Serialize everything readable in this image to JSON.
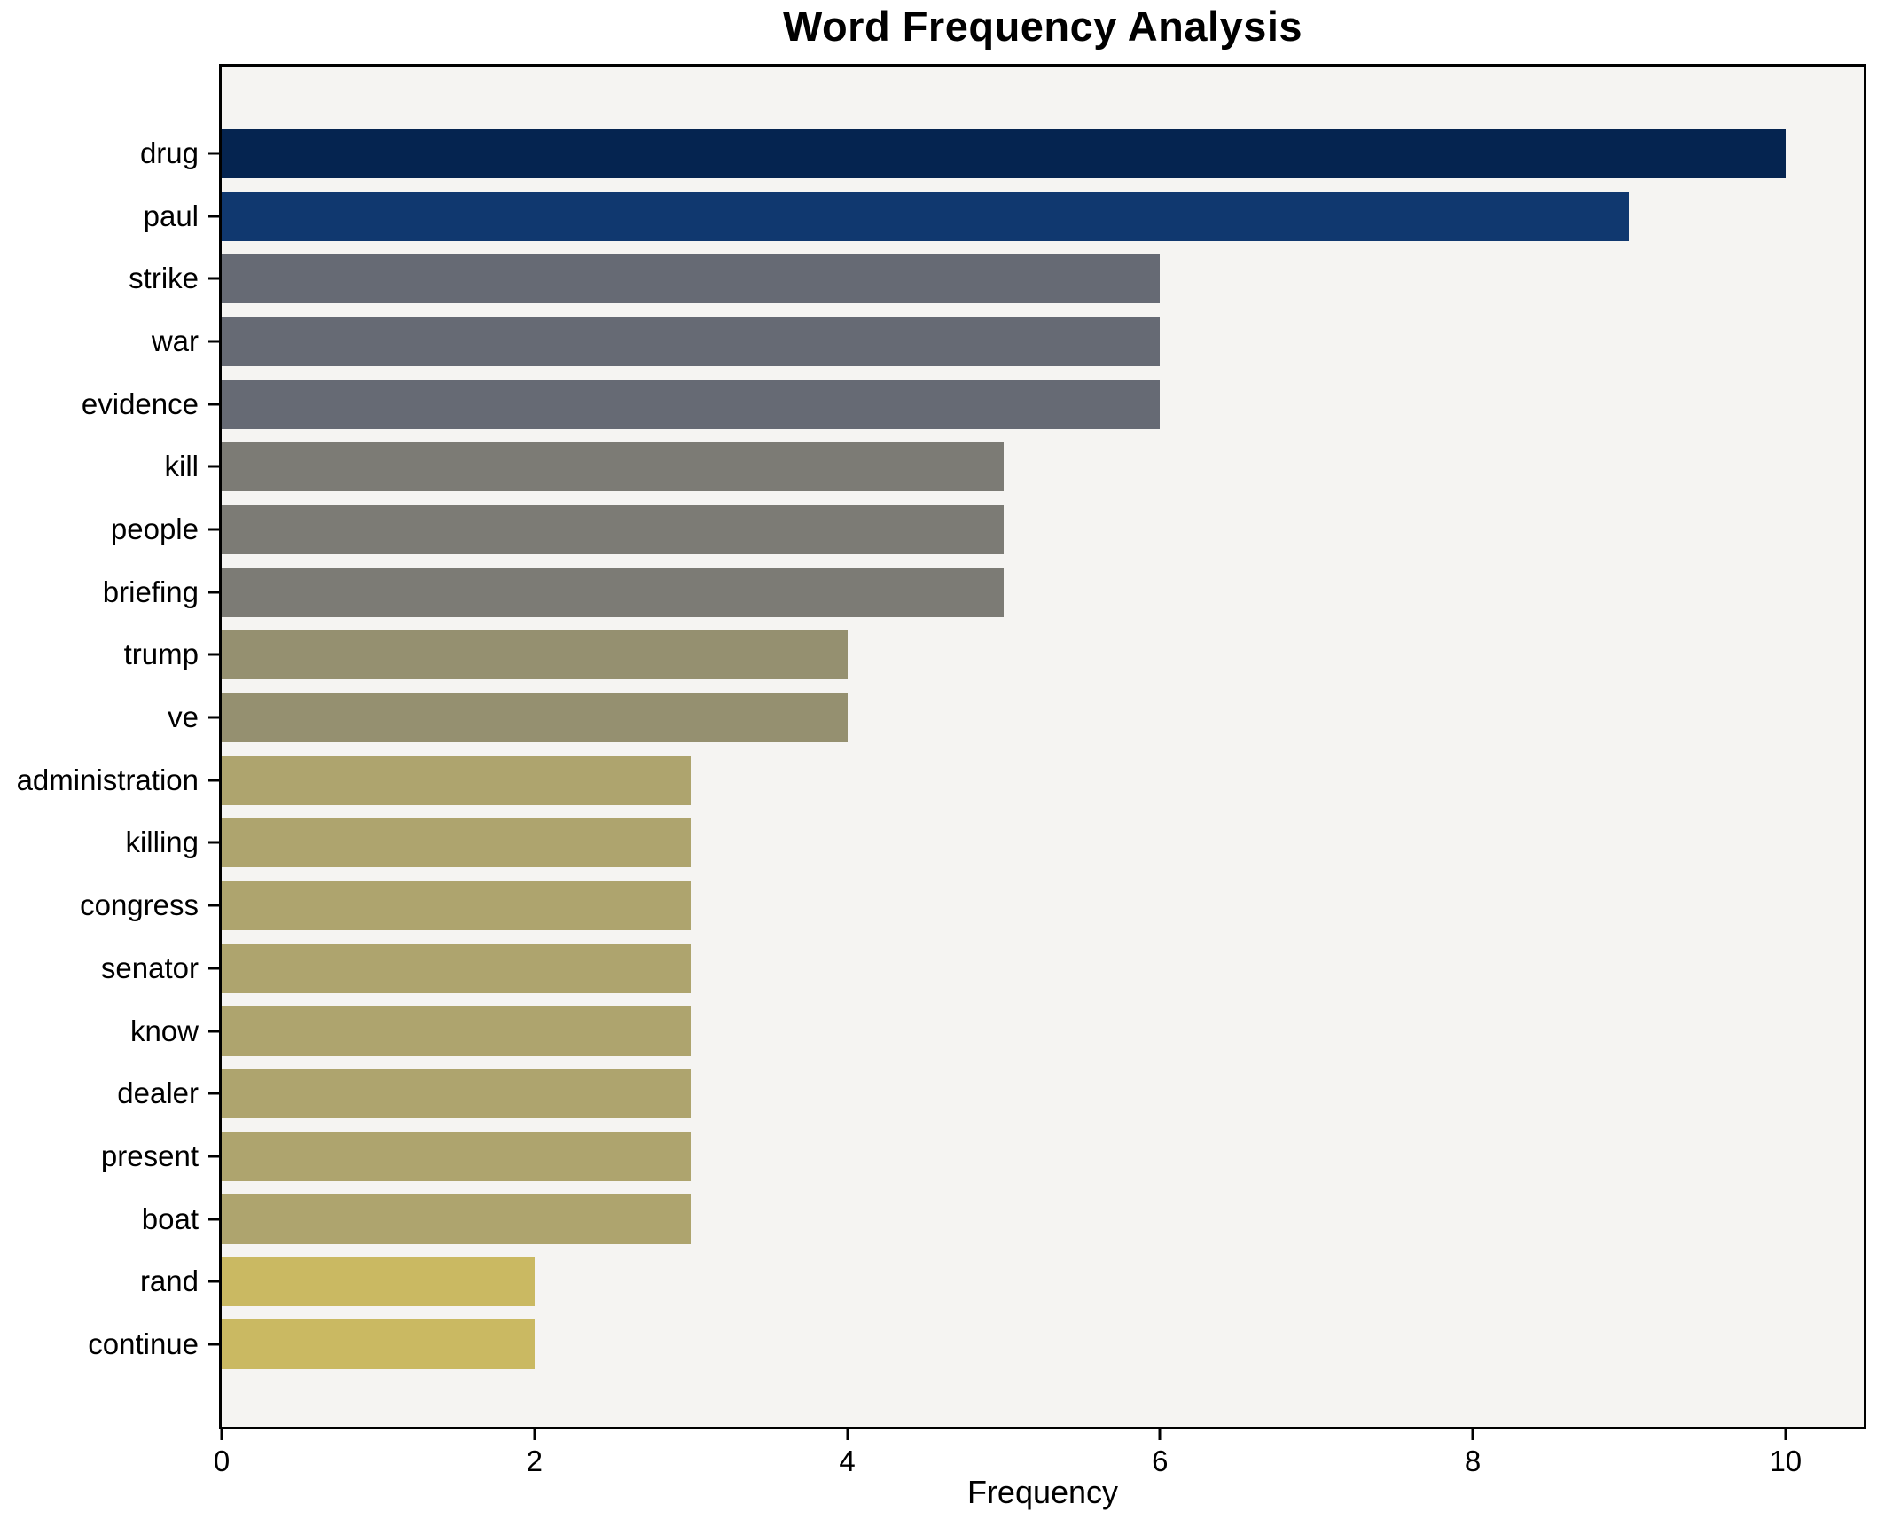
{
  "chart_data": {
    "type": "bar",
    "orientation": "horizontal",
    "title": "Word Frequency Analysis",
    "xlabel": "Frequency",
    "ylabel": "",
    "categories": [
      "drug",
      "paul",
      "strike",
      "war",
      "evidence",
      "kill",
      "people",
      "briefing",
      "trump",
      "ve",
      "administration",
      "killing",
      "congress",
      "senator",
      "know",
      "dealer",
      "present",
      "boat",
      "rand",
      "continue"
    ],
    "values": [
      10,
      9,
      6,
      6,
      6,
      5,
      5,
      5,
      4,
      4,
      3,
      3,
      3,
      3,
      3,
      3,
      3,
      3,
      2,
      2
    ],
    "bar_colors": [
      "#052450",
      "#10386f",
      "#666a74",
      "#666a74",
      "#666a74",
      "#7c7b75",
      "#7c7b75",
      "#7c7b75",
      "#959070",
      "#959070",
      "#aea46e",
      "#aea46e",
      "#aea46e",
      "#aea46e",
      "#aea46e",
      "#aea46e",
      "#aea46e",
      "#aea46e",
      "#cab962",
      "#cab962"
    ],
    "xlim": [
      0,
      10.5
    ],
    "x_ticks": [
      0,
      2,
      4,
      6,
      8,
      10
    ],
    "grid": false,
    "legend": false,
    "plot_bg": "#f5f4f2",
    "figure_bg": "#ffffff",
    "spine_color": "#000000"
  }
}
